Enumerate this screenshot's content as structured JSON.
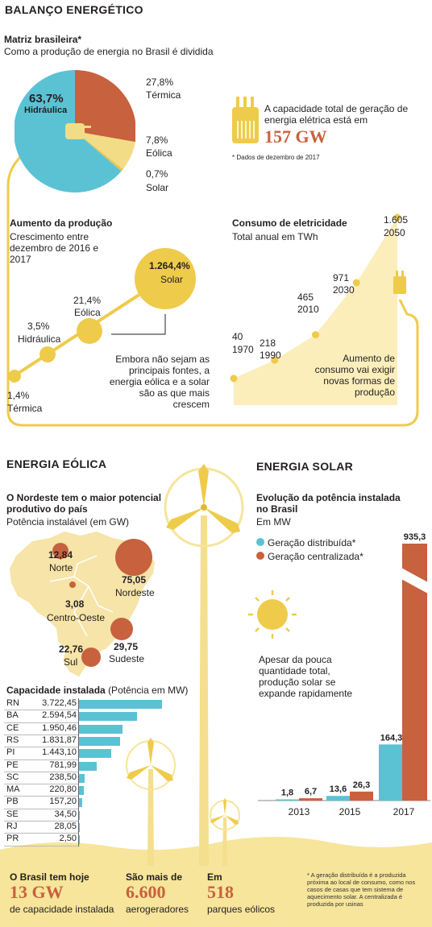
{
  "header": {
    "title": "BALANÇO ENERGÉTICO"
  },
  "matriz": {
    "title": "Matriz brasileira*",
    "subtitle": "Como a produção de energia no Brasil é dividida",
    "slices": [
      {
        "name": "Hidráulica",
        "value": 63.7,
        "label": "63,7%",
        "color": "#5bc2d4"
      },
      {
        "name": "Térmica",
        "value": 27.8,
        "label": "27,8%",
        "color": "#c8613d"
      },
      {
        "name": "Eólica",
        "value": 7.8,
        "label": "7,8%",
        "color": "#f3dc86"
      },
      {
        "name": "Solar",
        "value": 0.7,
        "label": "0,7%",
        "color": "#e8c650"
      }
    ]
  },
  "capacidade_total": {
    "text": "A capacidade total de geração de energia elétrica está em",
    "value": "157 GW",
    "footnote": "* Dados de dezembro de 2017"
  },
  "aumento": {
    "title": "Aumento da produção",
    "subtitle": "Crescimento entre dezembro de 2016 e 2017",
    "items": [
      {
        "name": "Térmica",
        "label": "1,4%"
      },
      {
        "name": "Hidráulica",
        "label": "3,5%"
      },
      {
        "name": "Eólica",
        "label": "21,4%"
      },
      {
        "name": "Solar",
        "label": "1.264,4%"
      }
    ],
    "annotation": "Embora não sejam as principais fontes, a energia eólica e a solar são as que mais crescem"
  },
  "consumo": {
    "title": "Consumo de eletricidade",
    "subtitle": "Total anual em TWh",
    "points": [
      {
        "year": "1970",
        "value": "40"
      },
      {
        "year": "1990",
        "value": "218"
      },
      {
        "year": "2010",
        "value": "465"
      },
      {
        "year": "2030",
        "value": "971"
      },
      {
        "year": "2050",
        "value": "1.605"
      }
    ],
    "annotation": "Aumento de consumo vai exigir novas formas de produção"
  },
  "eolica": {
    "title": "ENERGIA EÓLICA",
    "map_title": "O Nordeste tem o maior potencial produtivo do país",
    "map_subtitle": "Potência instalável (em GW)",
    "regions": [
      {
        "name": "Norte",
        "value": "12,84"
      },
      {
        "name": "Nordeste",
        "value": "75,05"
      },
      {
        "name": "Centro-Oeste",
        "value": "3,08"
      },
      {
        "name": "Sudeste",
        "value": "29,75"
      },
      {
        "name": "Sul",
        "value": "22,76"
      }
    ],
    "cap_title": "Capacidade instalada",
    "cap_subtitle": "(Potência em MW)"
  },
  "solar": {
    "title": "ENERGIA SOLAR",
    "chart_title": "Evolução da potência instalada no Brasil",
    "chart_unit": "Em MW",
    "legend": [
      "Geração distribuída*",
      "Geração centralizada*"
    ],
    "annotation": "Apesar da pouca quantidade total, produção solar se expande rapidamente"
  },
  "footer": {
    "stats": [
      {
        "label": "O Brasil tem hoje",
        "value": "13 GW",
        "sub": "de capacidade instalada"
      },
      {
        "label": "São mais de",
        "value": "6.600",
        "sub": "aerogeradores"
      },
      {
        "label": "Em",
        "value": "518",
        "sub": "parques eólicos"
      }
    ],
    "note": "* A geração distribuída é a produzida próxima ao local de consumo, como nos casos de casas que tem sistema de aquecimento solar. A centralizada é produzida por usinas"
  },
  "chart_data": [
    {
      "type": "pie",
      "title": "Matriz brasileira*",
      "categories": [
        "Hidráulica",
        "Térmica",
        "Eólica",
        "Solar"
      ],
      "values": [
        63.7,
        27.8,
        7.8,
        0.7
      ]
    },
    {
      "type": "scatter",
      "title": "Aumento da produção",
      "categories": [
        "Térmica",
        "Hidráulica",
        "Eólica",
        "Solar"
      ],
      "values": [
        1.4,
        3.5,
        21.4,
        1264.4
      ]
    },
    {
      "type": "area",
      "title": "Consumo de eletricidade",
      "ylabel": "Total anual em TWh",
      "x": [
        1970,
        1990,
        2010,
        2030,
        2050
      ],
      "values": [
        40,
        218,
        465,
        971,
        1605
      ]
    },
    {
      "type": "bar",
      "title": "Capacidade instalada",
      "ylabel": "(Potência em MW)",
      "categories": [
        "RN",
        "BA",
        "CE",
        "RS",
        "PI",
        "PE",
        "SC",
        "MA",
        "PB",
        "SE",
        "RJ",
        "PR"
      ],
      "values": [
        3722.45,
        2594.54,
        1950.46,
        1831.87,
        1443.1,
        781.99,
        238.5,
        220.8,
        157.2,
        34.5,
        28.05,
        2.5
      ],
      "labels": [
        "3.722,45",
        "2.594,54",
        "1.950,46",
        "1.831,87",
        "1.443,10",
        "781,99",
        "238,50",
        "220,80",
        "157,20",
        "34,50",
        "28,05",
        "2,50"
      ]
    },
    {
      "type": "bar",
      "title": "Evolução da potência instalada no Brasil",
      "ylabel": "Em MW",
      "categories": [
        "2013",
        "2015",
        "2017"
      ],
      "series": [
        {
          "name": "Geração distribuída*",
          "values": [
            1.8,
            13.6,
            164.3
          ],
          "labels": [
            "1,8",
            "13,6",
            "164,3"
          ],
          "color": "#5bc2d4"
        },
        {
          "name": "Geração centralizada*",
          "values": [
            6.7,
            26.3,
            935.3
          ],
          "labels": [
            "6,7",
            "26,3",
            "935,3"
          ],
          "color": "#c8613d"
        }
      ]
    }
  ]
}
